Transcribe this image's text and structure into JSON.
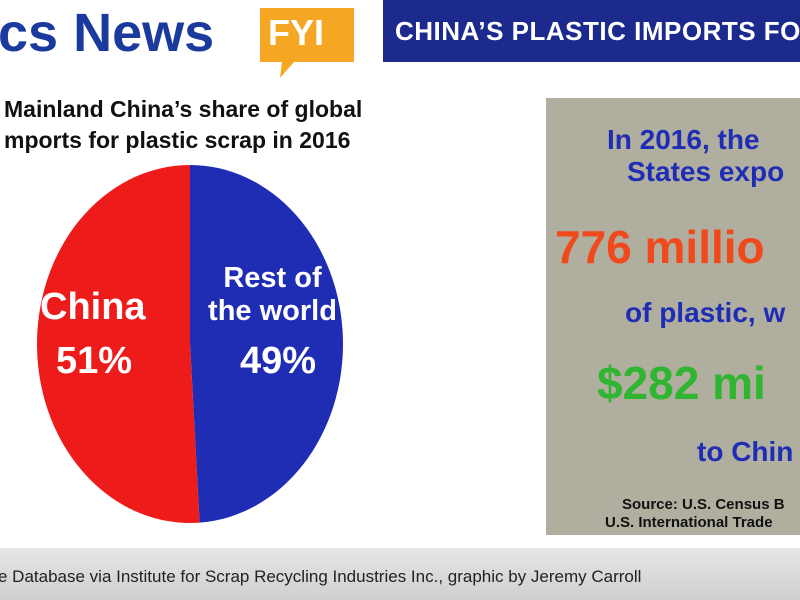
{
  "header": {
    "brand": "cs News",
    "badge": "FYI",
    "banner": "CHINA’S PLASTIC IMPORTS FO"
  },
  "chart_data": {
    "type": "pie",
    "title": [
      "Mainland China’s share of global",
      "mports for plastic scrap in 2016"
    ],
    "series": [
      {
        "name": "China",
        "color": "#ee1b1b",
        "values": [
          51
        ],
        "value_labels": [
          "51%"
        ]
      },
      {
        "name": "Rest of the world",
        "color": "#1f2db4",
        "values": [
          49
        ],
        "value_labels": [
          "49%"
        ]
      }
    ]
  },
  "panel": {
    "lines": [
      "In 2016, the",
      "States expo",
      "776 millio",
      "of plastic, w",
      "$282 mi",
      "to Chin"
    ],
    "source": [
      "Source: U.S. Census B",
      "U.S. International Trade"
    ]
  },
  "footer": {
    "credit": "e Database via Institute for Scrap Recycling Industries Inc., graphic by Jeremy Carroll"
  }
}
